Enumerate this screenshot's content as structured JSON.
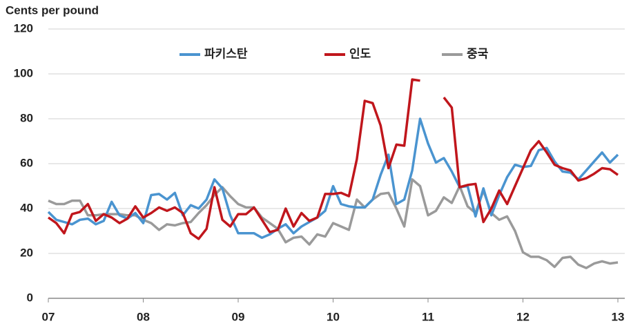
{
  "chart_data": {
    "type": "line",
    "y_axis_label": "Cents per pound",
    "categories": [
      "07",
      null,
      null,
      null,
      null,
      null,
      null,
      null,
      null,
      null,
      null,
      null,
      "08",
      null,
      null,
      null,
      null,
      null,
      null,
      null,
      null,
      null,
      null,
      null,
      "09",
      null,
      null,
      null,
      null,
      null,
      null,
      null,
      null,
      null,
      null,
      null,
      "10",
      null,
      null,
      null,
      null,
      null,
      null,
      null,
      null,
      null,
      null,
      null,
      "11",
      null,
      null,
      null,
      null,
      null,
      null,
      null,
      null,
      null,
      null,
      null,
      "12",
      null,
      null,
      null,
      null,
      null,
      null,
      null,
      null,
      null,
      null,
      null,
      "13"
    ],
    "series": [
      {
        "name": "파키스탄",
        "color": "#4a94d0",
        "values": [
          38.5,
          35,
          34,
          33,
          35,
          35.5,
          33,
          34.5,
          43,
          37,
          35.5,
          38,
          33.5,
          46,
          46.5,
          44,
          47,
          37,
          41.5,
          40,
          44,
          53,
          49,
          37,
          29,
          29,
          29,
          27,
          28.5,
          31,
          33,
          29,
          32,
          34,
          36,
          39,
          50,
          42,
          41,
          40.5,
          40.5,
          44,
          55,
          64,
          42,
          44,
          57,
          80,
          69,
          60.5,
          62.5,
          56.5,
          49.5,
          50,
          36.5,
          49,
          37,
          46,
          54,
          59.5,
          58.5,
          59,
          66,
          67,
          61,
          56.5,
          56,
          53,
          57,
          61,
          65,
          60.5,
          64
        ]
      },
      {
        "name": "인도",
        "color": "#c0161c",
        "values": [
          36,
          33.5,
          29,
          37.5,
          38.5,
          42,
          34.5,
          37.5,
          36,
          33.5,
          35.5,
          41,
          36,
          38,
          40.5,
          39,
          40.5,
          38,
          29,
          26.5,
          31,
          49.5,
          35,
          32,
          37.5,
          37.5,
          40.5,
          35,
          29.5,
          30.5,
          40,
          32,
          38,
          34.5,
          36,
          46.5,
          46.5,
          47,
          45.5,
          62,
          88,
          87,
          77,
          58,
          68.5,
          68,
          97.5,
          97,
          null,
          null,
          89.5,
          85,
          49.5,
          50.5,
          51,
          34,
          40,
          48,
          42,
          50,
          58,
          66,
          70,
          65,
          59.5,
          58,
          57,
          52.5,
          53.5,
          55.5,
          58,
          57.5,
          55
        ]
      },
      {
        "name": "중국",
        "color": "#9a9a9a",
        "values": [
          43.5,
          42,
          42,
          43.5,
          43.5,
          37,
          37,
          37.5,
          37.5,
          37.5,
          37,
          37,
          35,
          33.5,
          30.5,
          33,
          32.5,
          33.5,
          34,
          38,
          41.5,
          46,
          49.5,
          45.5,
          42,
          40.5,
          40.5,
          36,
          33.5,
          31,
          25,
          27,
          27.5,
          24,
          28.5,
          27.5,
          33.5,
          32,
          30.5,
          44,
          40.5,
          44,
          46.5,
          47,
          40,
          32,
          53,
          50,
          37,
          39,
          45,
          42.5,
          50,
          41,
          38,
          48,
          38,
          35,
          36.5,
          30,
          20.5,
          18.5,
          18.5,
          17,
          14,
          18,
          18.5,
          15,
          13.5,
          15.5,
          16.5,
          15.5,
          16
        ]
      }
    ],
    "ylim": [
      0,
      120
    ],
    "yticks": [
      0,
      20,
      40,
      60,
      80,
      100,
      120
    ],
    "grid": true,
    "legend": "top"
  }
}
